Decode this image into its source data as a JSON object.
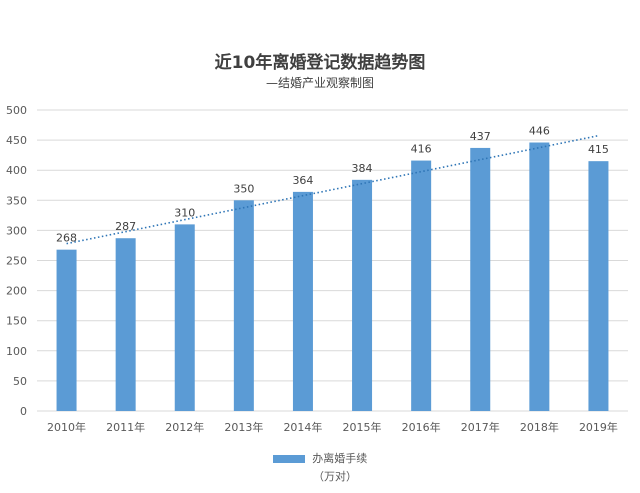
{
  "chart_data": {
    "type": "bar",
    "title": "近10年离婚登记数据趋势图",
    "subtitle": "—结婚产业观察制图",
    "categories": [
      "2010年",
      "2011年",
      "2012年",
      "2013年",
      "2014年",
      "2015年",
      "2016年",
      "2017年",
      "2018年",
      "2019年"
    ],
    "series": [
      {
        "name": "办离婚手续",
        "values": [
          268,
          287,
          310,
          350,
          364,
          384,
          416,
          437,
          446,
          415
        ]
      }
    ],
    "unit_label": "（万对）",
    "ylim": [
      0,
      500
    ],
    "yticks": [
      0,
      50,
      100,
      150,
      200,
      250,
      300,
      350,
      400,
      450,
      500
    ],
    "trendline": {
      "style": "dotted",
      "type": "linear"
    },
    "grid": true,
    "legend_position": "bottom",
    "colors": {
      "bar": "#5b9bd5",
      "trend": "#2e75b6",
      "grid": "#d9d9d9"
    }
  }
}
